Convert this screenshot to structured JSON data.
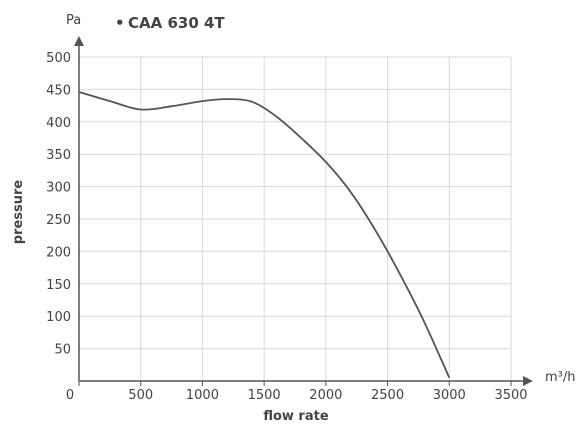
{
  "chart_data": {
    "type": "line",
    "title": "",
    "xlabel": "flow rate",
    "ylabel": "pressure",
    "x_unit": "m³/h",
    "y_unit": "Pa",
    "xlim": [
      0,
      3500
    ],
    "ylim": [
      0,
      500
    ],
    "x_ticks": [
      0,
      500,
      1000,
      1500,
      2000,
      2500,
      3000,
      3500
    ],
    "y_ticks": [
      50,
      100,
      150,
      200,
      250,
      300,
      350,
      400,
      450,
      500
    ],
    "grid": true,
    "legend": "top-left",
    "series": [
      {
        "name": "CAA 630 4T",
        "color": "#555555",
        "x": [
          0,
          250,
          500,
          750,
          1000,
          1200,
          1400,
          1600,
          1800,
          2000,
          2200,
          2400,
          2600,
          2800,
          3000
        ],
        "y": [
          446,
          432,
          419,
          424,
          432,
          435,
          431,
          408,
          375,
          338,
          292,
          233,
          165,
          90,
          5
        ]
      }
    ]
  },
  "legend_bullet": "•"
}
